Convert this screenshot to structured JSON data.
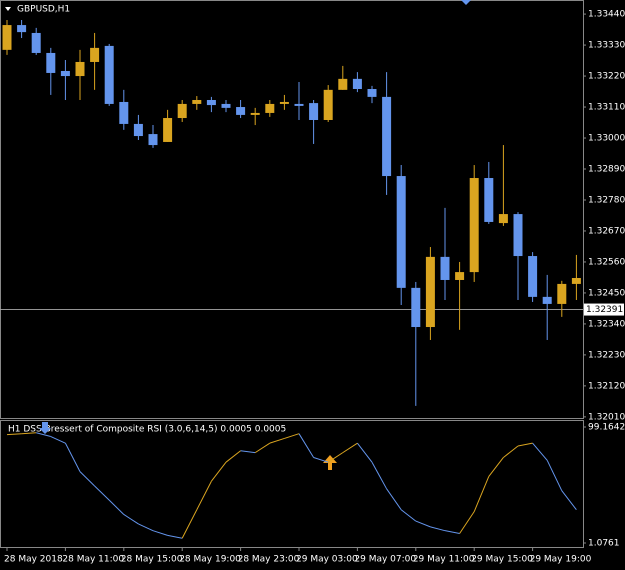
{
  "chart_data": [
    {
      "type": "candlestick",
      "title": "GBPUSD,H1",
      "categories": [
        "28 May 2018",
        null,
        null,
        null,
        "28 May 11:00",
        null,
        null,
        null,
        "28 May 15:00",
        null,
        null,
        null,
        "28 May 19:00",
        null,
        null,
        null,
        "28 May 23:00",
        null,
        null,
        null,
        "29 May 03:00",
        null,
        null,
        null,
        "29 May 07:00",
        null,
        null,
        null,
        "29 May 11:00",
        null,
        null,
        null,
        "29 May 15:00",
        null,
        null,
        null,
        "29 May 19:00",
        null,
        null,
        null
      ],
      "open": [
        1.33313,
        1.33401,
        1.33373,
        1.33302,
        1.33238,
        1.3322,
        1.3327,
        1.33327,
        1.33128,
        1.3305,
        1.33014,
        1.32986,
        1.33071,
        1.33121,
        1.33135,
        1.33121,
        1.3311,
        1.33082,
        1.33089,
        1.33121,
        1.33121,
        1.33124,
        1.33064,
        1.33171,
        1.3321,
        1.33174,
        1.33146,
        1.32865,
        1.32468,
        1.32329,
        1.32578,
        1.32496,
        1.32524,
        1.32858,
        1.32698,
        1.3273,
        1.32581,
        1.32436,
        1.32411,
        1.32482
      ],
      "high": [
        1.33419,
        1.33419,
        1.33391,
        1.3332,
        1.33277,
        1.33313,
        1.33373,
        1.33334,
        1.33171,
        1.33082,
        1.33046,
        1.331,
        1.33135,
        1.33149,
        1.33146,
        1.33135,
        1.33135,
        1.33107,
        1.33135,
        1.33153,
        1.33199,
        1.33135,
        1.33188,
        1.33256,
        1.33234,
        1.33185,
        1.33234,
        1.32904,
        1.32489,
        1.32613,
        1.32752,
        1.3256,
        1.32904,
        1.32915,
        1.32975,
        1.32737,
        1.32595,
        1.32514,
        1.32493,
        1.32585
      ],
      "low": [
        1.33295,
        1.33355,
        1.33295,
        1.33153,
        1.33135,
        1.33135,
        1.33171,
        1.33114,
        1.33029,
        1.32993,
        1.32965,
        1.32986,
        1.33057,
        1.331,
        1.33092,
        1.33092,
        1.33071,
        1.33046,
        1.33075,
        1.331,
        1.33064,
        1.32979,
        1.33057,
        1.33171,
        1.33163,
        1.33124,
        1.32798,
        1.32407,
        1.32049,
        1.32283,
        1.32425,
        1.32319,
        1.32489,
        1.32695,
        1.32688,
        1.32425,
        1.32418,
        1.32283,
        1.32365,
        1.32425
      ],
      "close": [
        1.33401,
        1.33376,
        1.33302,
        1.33231,
        1.3322,
        1.3327,
        1.3332,
        1.33121,
        1.3305,
        1.33007,
        1.32975,
        1.33071,
        1.33121,
        1.33135,
        1.33117,
        1.33107,
        1.33082,
        1.33089,
        1.33121,
        1.33128,
        1.33114,
        1.33064,
        1.33171,
        1.3321,
        1.33174,
        1.33146,
        1.32865,
        1.32468,
        1.32329,
        1.32578,
        1.32496,
        1.32524,
        1.32858,
        1.32702,
        1.3273,
        1.32581,
        1.32436,
        1.32411,
        1.32482,
        1.32503
      ],
      "up_color": "#daa520",
      "down_color": "#6495ed",
      "last_price": 1.32391,
      "ylim": [
        1.32006,
        1.3349
      ],
      "yticks": [
        {
          "value": 1.3344,
          "label": "1.33440"
        },
        {
          "value": 1.3333,
          "label": "1.33330"
        },
        {
          "value": 1.3322,
          "label": "1.33220"
        },
        {
          "value": 1.3311,
          "label": "1.33110"
        },
        {
          "value": 1.33,
          "label": "1.33000"
        },
        {
          "value": 1.3289,
          "label": "1.32890"
        },
        {
          "value": 1.3278,
          "label": "1.32780"
        },
        {
          "value": 1.3267,
          "label": "1.32670"
        },
        {
          "value": 1.3256,
          "label": "1.32560"
        },
        {
          "value": 1.3245,
          "label": "1.32450"
        },
        {
          "value": 1.3234,
          "label": "1.32340"
        },
        {
          "value": 1.3223,
          "label": "1.32230"
        },
        {
          "value": 1.3212,
          "label": "1.32120"
        },
        {
          "value": 1.3201,
          "label": "1.32010"
        }
      ]
    },
    {
      "type": "line",
      "title": "H1 DSS Bressert of Composite RSI (3.0,6,14,5) 0.0005 0.0005",
      "values": [
        92.7,
        93.5,
        94.3,
        91.1,
        85.5,
        61.4,
        49.3,
        37.3,
        25.2,
        17.2,
        11.5,
        7.5,
        5.1,
        29.2,
        53.3,
        69.4,
        79.1,
        77.5,
        85.5,
        89.5,
        93.5,
        73.4,
        69.4,
        77.5,
        85.5,
        69.4,
        46.9,
        29.2,
        19.6,
        14.7,
        11.5,
        9.1,
        27.6,
        57.4,
        73.4,
        83.1,
        85.5,
        71.0,
        45.3,
        29.2
      ],
      "up_color": "#daa520",
      "down_color": "#6495ed",
      "ylim": [
        1.0761,
        99.1642
      ],
      "yticks": [
        99.1642,
        1.0761
      ]
    }
  ]
}
